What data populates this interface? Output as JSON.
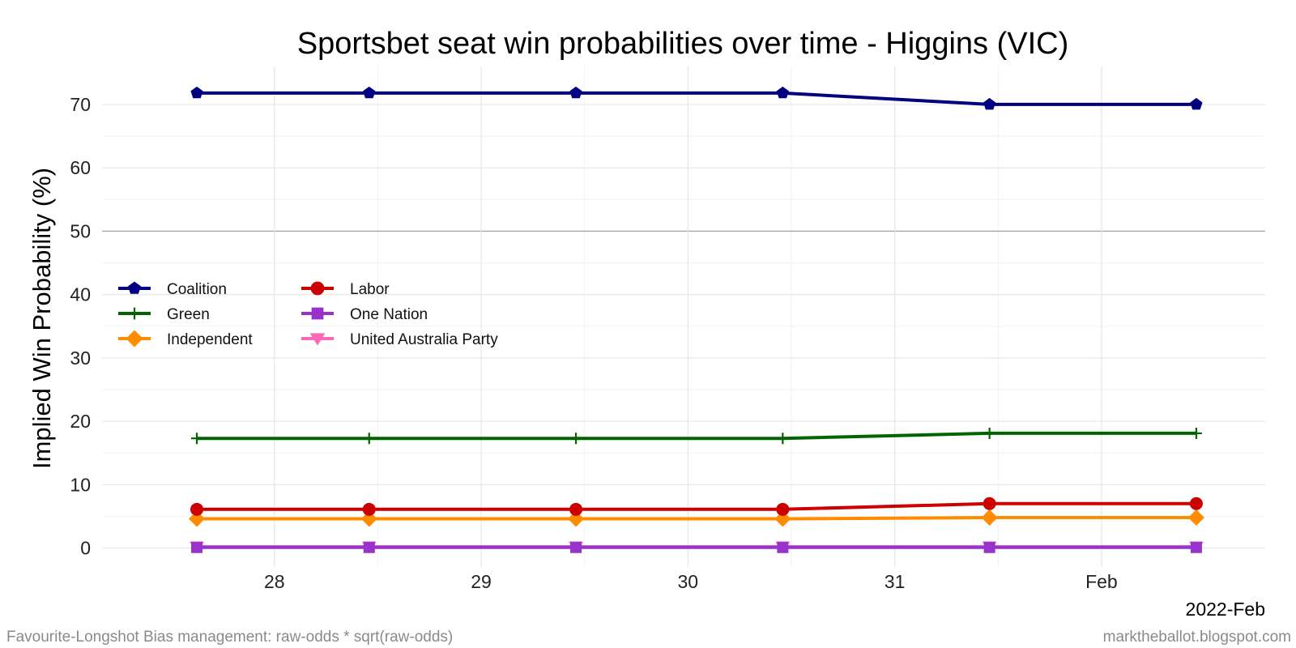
{
  "chart_data": {
    "type": "line",
    "title": "Sportsbet seat win probabilities over time - Higgins (VIC)",
    "ylabel": "Implied Win Probability (%)",
    "x_axis_tag": "2022-Feb",
    "caption_left": "Favourite-Longshot Bias management: raw-odds * sqrt(raw-odds)",
    "caption_right": "marktheballot.blogspot.com",
    "ylim": [
      -3,
      76
    ],
    "yticks": [
      0,
      10,
      20,
      30,
      40,
      50,
      60,
      70
    ],
    "reference_line": 50,
    "x_range": [
      "2022-01-27T04:00",
      "2022-02-01T19:00"
    ],
    "x_ticks": [
      {
        "date": "2022-01-28",
        "label": "28"
      },
      {
        "date": "2022-01-29",
        "label": "29"
      },
      {
        "date": "2022-01-30",
        "label": "30"
      },
      {
        "date": "2022-01-31",
        "label": "31"
      },
      {
        "date": "2022-02-01",
        "label": "Feb"
      }
    ],
    "x": [
      "2022-01-27T15:00",
      "2022-01-28T11:00",
      "2022-01-29T11:00",
      "2022-01-30T11:00",
      "2022-01-31T11:00",
      "2022-02-01T11:00"
    ],
    "legend_position": "left-middle",
    "grid": true,
    "series": [
      {
        "name": "Coalition",
        "color": "#000080",
        "marker": "pentagon",
        "values": [
          71.8,
          71.8,
          71.8,
          71.8,
          70.0,
          70.0
        ]
      },
      {
        "name": "Labor",
        "color": "#cc0000",
        "marker": "circle",
        "values": [
          6.1,
          6.1,
          6.1,
          6.1,
          7.0,
          7.0
        ]
      },
      {
        "name": "Green",
        "color": "#006400",
        "marker": "plus",
        "values": [
          17.3,
          17.3,
          17.3,
          17.3,
          18.1,
          18.1
        ]
      },
      {
        "name": "One Nation",
        "color": "#9932cc",
        "marker": "square",
        "values": [
          0.1,
          0.1,
          0.1,
          0.1,
          0.1,
          0.1
        ]
      },
      {
        "name": "Independent",
        "color": "#ff8c00",
        "marker": "diamond",
        "values": [
          4.6,
          4.6,
          4.6,
          4.6,
          4.8,
          4.8
        ]
      },
      {
        "name": "United Australia Party",
        "color": "#ff69b4",
        "marker": "triangle-down",
        "values": [
          0.2,
          0.2,
          0.2,
          0.2,
          0.2,
          0.2
        ]
      }
    ]
  }
}
